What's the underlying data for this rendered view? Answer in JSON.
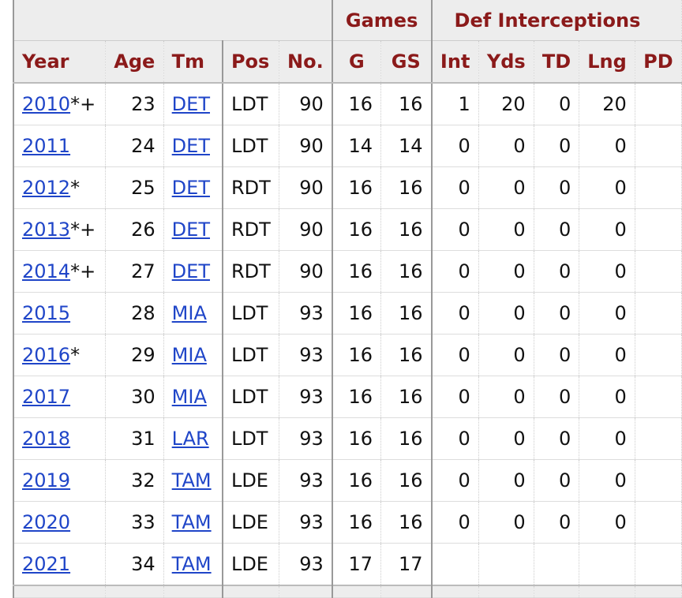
{
  "table": {
    "group_headers": [
      "Games",
      "Def Interceptions"
    ],
    "columns": [
      "Year",
      "Age",
      "Tm",
      "Pos",
      "No.",
      "G",
      "GS",
      "Int",
      "Yds",
      "TD",
      "Lng",
      "PD"
    ],
    "rows": [
      {
        "year": "2010",
        "mark": "*+",
        "age": 23,
        "tm": "DET",
        "pos": "LDT",
        "no": 90,
        "g": 16,
        "gs": 16,
        "int": 1,
        "yds": 20,
        "td": 0,
        "lng": 20
      },
      {
        "year": "2011",
        "age": 24,
        "tm": "DET",
        "pos": "LDT",
        "no": 90,
        "g": 14,
        "gs": 14,
        "int": 0,
        "yds": 0,
        "td": 0,
        "lng": 0
      },
      {
        "year": "2012",
        "mark": "*",
        "age": 25,
        "tm": "DET",
        "pos": "RDT",
        "no": 90,
        "g": 16,
        "gs": 16,
        "int": 0,
        "yds": 0,
        "td": 0,
        "lng": 0
      },
      {
        "year": "2013",
        "mark": "*+",
        "age": 26,
        "tm": "DET",
        "pos": "RDT",
        "no": 90,
        "g": 16,
        "gs": 16,
        "int": 0,
        "yds": 0,
        "td": 0,
        "lng": 0
      },
      {
        "year": "2014",
        "mark": "*+",
        "age": 27,
        "tm": "DET",
        "pos": "RDT",
        "no": 90,
        "g": 16,
        "gs": 16,
        "int": 0,
        "yds": 0,
        "td": 0,
        "lng": 0
      },
      {
        "year": "2015",
        "age": 28,
        "tm": "MIA",
        "pos": "LDT",
        "no": 93,
        "g": 16,
        "gs": 16,
        "int": 0,
        "yds": 0,
        "td": 0,
        "lng": 0
      },
      {
        "year": "2016",
        "mark": "*",
        "age": 29,
        "tm": "MIA",
        "pos": "LDT",
        "no": 93,
        "g": 16,
        "gs": 16,
        "int": 0,
        "yds": 0,
        "td": 0,
        "lng": 0
      },
      {
        "year": "2017",
        "age": 30,
        "tm": "MIA",
        "pos": "LDT",
        "no": 93,
        "g": 16,
        "gs": 16,
        "int": 0,
        "yds": 0,
        "td": 0,
        "lng": 0
      },
      {
        "year": "2018",
        "age": 31,
        "tm": "LAR",
        "pos": "LDT",
        "no": 93,
        "g": 16,
        "gs": 16,
        "int": 0,
        "yds": 0,
        "td": 0,
        "lng": 0
      },
      {
        "year": "2019",
        "age": 32,
        "tm": "TAM",
        "pos": "LDE",
        "no": 93,
        "g": 16,
        "gs": 16,
        "int": 0,
        "yds": 0,
        "td": 0,
        "lng": 0
      },
      {
        "year": "2020",
        "age": 33,
        "tm": "TAM",
        "pos": "LDE",
        "no": 93,
        "g": 16,
        "gs": 16,
        "int": 0,
        "yds": 0,
        "td": 0,
        "lng": 0
      },
      {
        "year": "2021",
        "age": 34,
        "tm": "TAM",
        "pos": "LDE",
        "no": 93,
        "g": 17,
        "gs": 17
      }
    ]
  }
}
